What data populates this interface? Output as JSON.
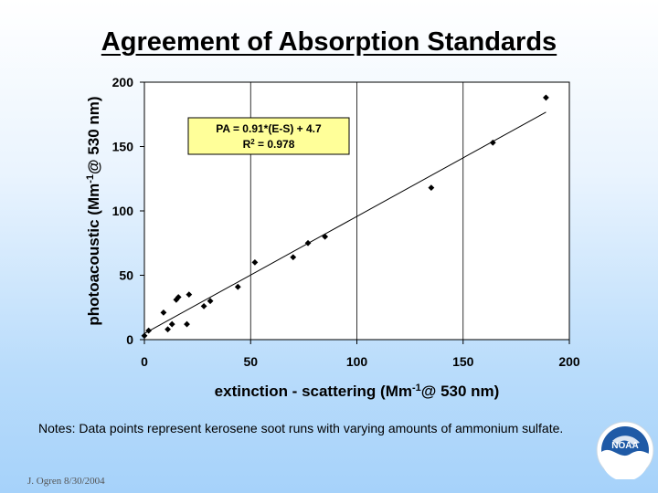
{
  "slide": {
    "title": "Agreement of Absorption Standards",
    "notes": "Notes:  Data points represent kerosene soot runs with varying amounts of ammonium sulfate.",
    "footer": "J. Ogren  8/30/2004",
    "logo_text": "NOAA"
  },
  "colors": {
    "plot_background": "#ffffff",
    "annotation_background": "#ffff99",
    "marker": "#000000"
  },
  "chart_data": {
    "type": "scatter",
    "title": "",
    "xlabel_main": "extinction - scattering (Mm",
    "xlabel_sup": "-1",
    "xlabel_tail": "@ 530 nm)",
    "ylabel_main": "photoacoustic (Mm",
    "ylabel_sup": "-1",
    "ylabel_tail": "@ 530 nm)",
    "xlim": [
      0,
      200
    ],
    "ylim": [
      0,
      200
    ],
    "xticks": [
      0,
      50,
      100,
      150,
      200
    ],
    "yticks": [
      0,
      50,
      100,
      150,
      200
    ],
    "grid": "vertical",
    "x": [
      0,
      2,
      9,
      11,
      13,
      15,
      16,
      20,
      21,
      28,
      31,
      44,
      52,
      70,
      77,
      85,
      135,
      164,
      189
    ],
    "y": [
      3,
      7,
      21,
      8,
      12,
      31,
      33,
      12,
      35,
      26,
      30,
      41,
      60,
      64,
      75,
      80,
      118,
      153,
      188
    ],
    "fit": {
      "slope": 0.91,
      "intercept": 4.7,
      "x_range": [
        0,
        189
      ]
    },
    "annotation": {
      "line1": "PA = 0.91*(E-S) + 4.7",
      "line2_prefix": "R",
      "line2_sup": "2",
      "line2_suffix": " = 0.978"
    }
  }
}
